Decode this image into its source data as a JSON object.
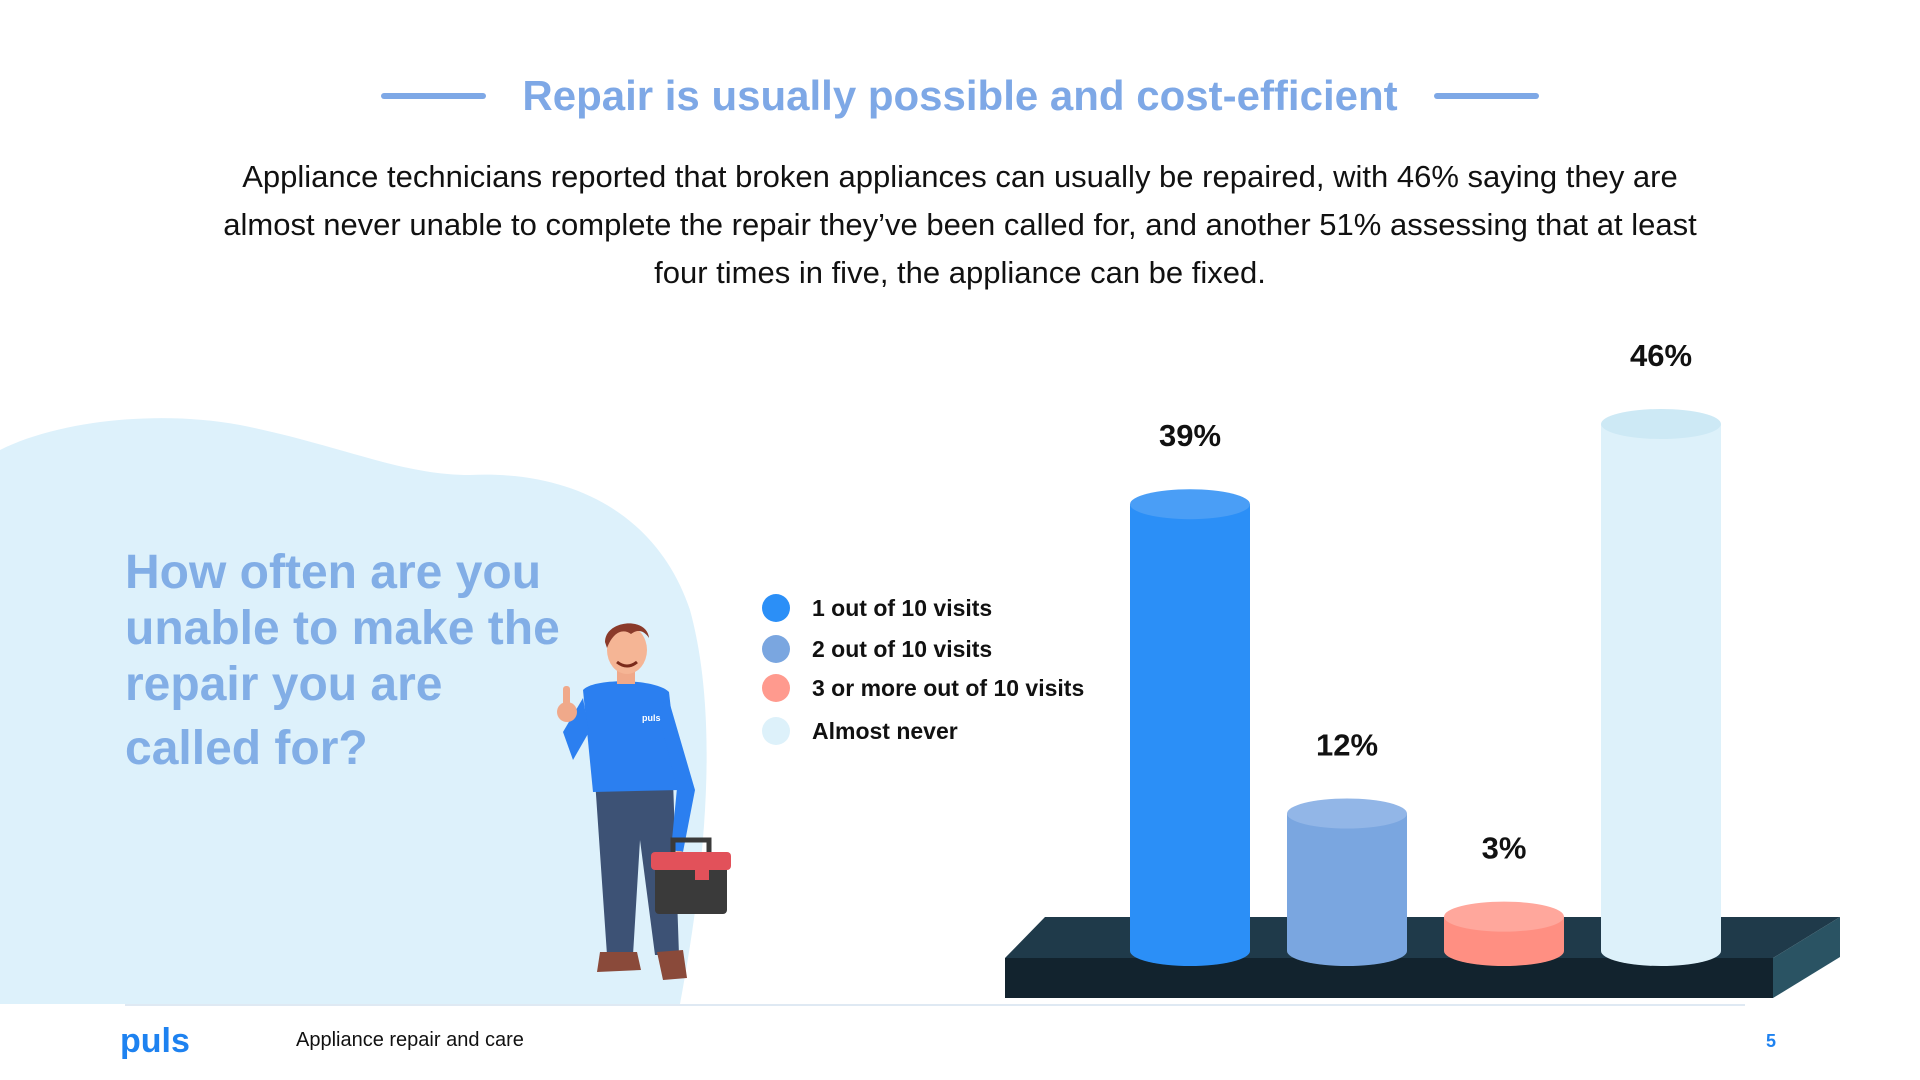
{
  "header": {
    "title": "Repair is usually possible and cost-efficient",
    "subtitle": "Appliance technicians reported that broken appliances can usually be repaired, with 46% saying they are almost never unable to complete the repair they’ve been called for, and another 51% assessing that at least four times in five, the appliance can be fixed."
  },
  "question": {
    "line1": "How often are you",
    "line2": "unable to make the",
    "line3": "repair you are",
    "line4": "called for?"
  },
  "illustration": {
    "shirt_text": "puls"
  },
  "chart_data": {
    "type": "bar",
    "categories": [
      "1 out of 10 visits",
      "2 out of 10 visits",
      "3 or more out of 10 visits",
      "Almost never"
    ],
    "values": [
      39,
      12,
      3,
      46
    ],
    "value_labels": [
      "39%",
      "12%",
      "3%",
      "46%"
    ],
    "colors": [
      "#2b8ff7",
      "#7aa6e0",
      "#ff8f82",
      "#ddf1fa"
    ],
    "cap_colors": [
      "#4a9ef6",
      "#92b6e7",
      "#ffa79c",
      "#cde9f5"
    ],
    "legend_position": "left",
    "title": "",
    "xlabel": "",
    "ylabel": "",
    "ylim": [
      0,
      46
    ],
    "grid": false
  },
  "footer": {
    "brand": "puls",
    "section": "Appliance repair and care",
    "page": "5"
  }
}
